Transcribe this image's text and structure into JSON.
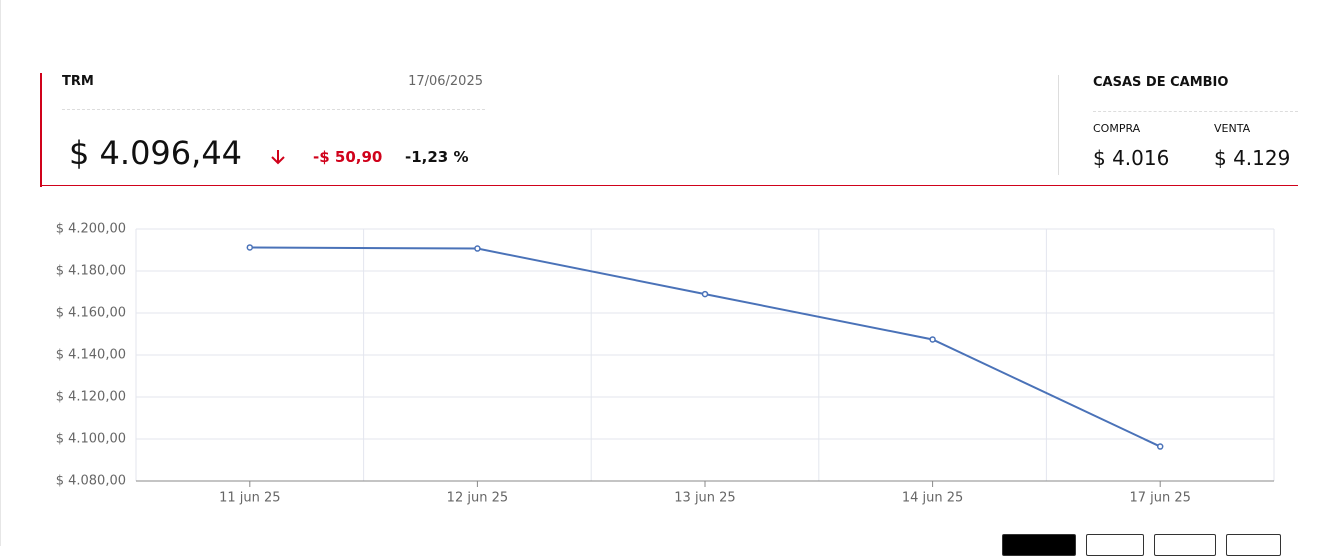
{
  "header": {
    "trm_label": "TRM",
    "date": "17/06/2025",
    "value": "$ 4.096,44",
    "change": "-$ 50,90",
    "change_pct": "-1,23 %",
    "casas_title": "CASAS DE CAMBIO",
    "compra_label": "COMPRA",
    "compra_value": "$ 4.016",
    "venta_label": "VENTA",
    "venta_value": "$ 4.129"
  },
  "chart_data": {
    "type": "line",
    "categories": [
      "11 jun 25",
      "12 jun 25",
      "13 jun 25",
      "14 jun 25",
      "17 jun 25"
    ],
    "values": [
      4191.2,
      4190.7,
      4169.0,
      4147.4,
      4096.4
    ],
    "color": "#4a72b8",
    "ylim": [
      4080,
      4200
    ],
    "yticks": [
      {
        "value": 4080,
        "label": "$ 4.080,00"
      },
      {
        "value": 4100,
        "label": "$ 4.100,00"
      },
      {
        "value": 4120,
        "label": "$ 4.120,00"
      },
      {
        "value": 4140,
        "label": "$ 4.140,00"
      },
      {
        "value": 4160,
        "label": "$ 4.160,00"
      },
      {
        "value": 4180,
        "label": "$ 4.180,00"
      },
      {
        "value": 4200,
        "label": "$ 4.200,00"
      }
    ],
    "grid": true
  }
}
